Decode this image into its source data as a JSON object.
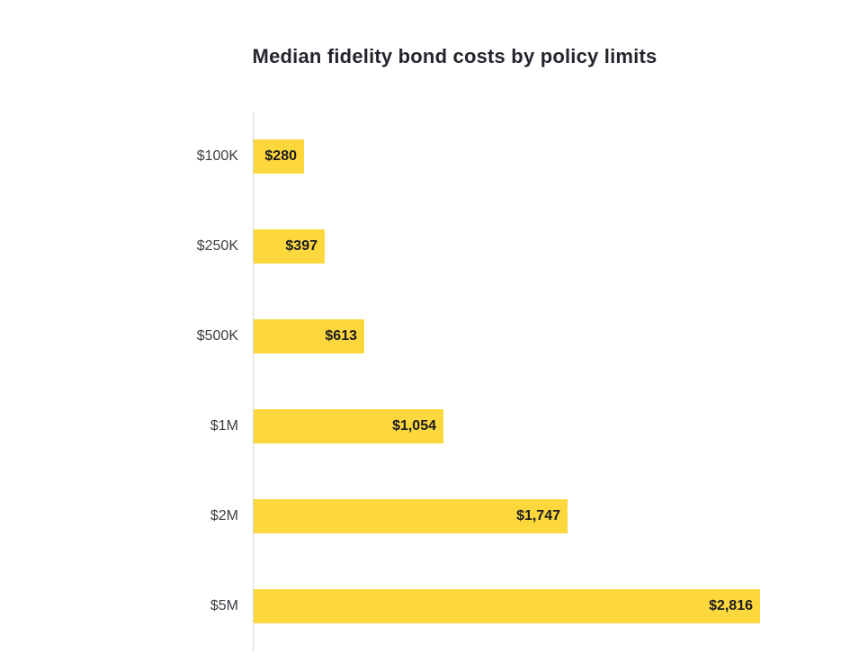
{
  "title": "Median fidelity bond costs by policy limits",
  "colors": {
    "bar": "#fdd83c",
    "title_text": "#25252e",
    "category_text": "#3d3d45",
    "value_text": "#1b1b22",
    "axis_line": "#d6d6d6",
    "background": "#ffffff"
  },
  "chart_data": {
    "type": "bar",
    "orientation": "horizontal",
    "title": "Median fidelity bond costs by policy limits",
    "categories": [
      "$100K",
      "$250K",
      "$500K",
      "$1M",
      "$2M",
      "$5M"
    ],
    "values": [
      280,
      397,
      613,
      1054,
      1747,
      2816
    ],
    "value_labels": [
      "$280",
      "$397",
      "$613",
      "$1,054",
      "$1,747",
      "$2,816"
    ],
    "xlabel": "",
    "ylabel": "",
    "xlim": [
      0,
      2816
    ],
    "grid": false,
    "legend": false,
    "value_label_position": "inside-end",
    "category_axis_side": "left"
  }
}
